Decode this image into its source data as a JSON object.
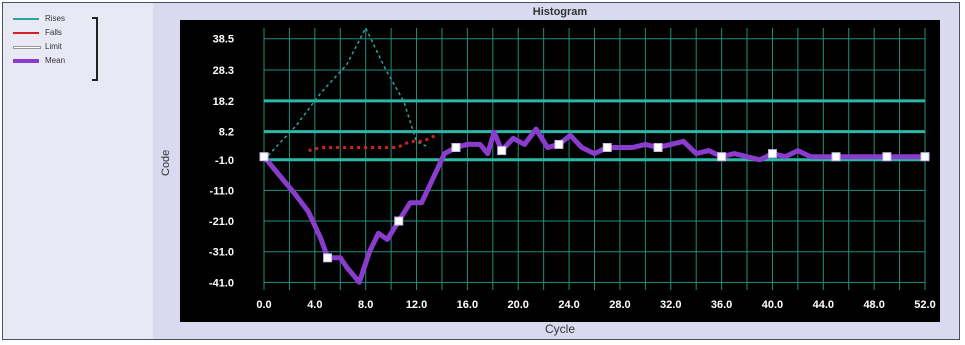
{
  "chart_data": {
    "type": "line",
    "title": "Histogram",
    "xlabel": "Cycle",
    "ylabel": "Code",
    "xlim": [
      0,
      52
    ],
    "x_ticks": [
      0,
      4,
      8,
      12,
      16,
      20,
      24,
      28,
      32,
      36,
      40,
      44,
      48,
      52
    ],
    "x_tick_labels": [
      "0.0",
      "4.0",
      "8.0",
      "12.0",
      "16.0",
      "20.0",
      "24.0",
      "28.0",
      "32.0",
      "36.0",
      "40.0",
      "44.0",
      "48.0",
      "52.0"
    ],
    "y_ticks": [
      38.5,
      28.3,
      18.2,
      8.2,
      -1.0,
      -11.0,
      -21.0,
      -31.0,
      -41.0
    ],
    "y_tick_labels": [
      "38.5",
      "28.3",
      "18.2",
      "8.2",
      "-1.0",
      "-11.0",
      "-21.0",
      "-31.0",
      "-41.0"
    ],
    "ylim": [
      -43.5,
      42
    ],
    "grid": true,
    "legend_position": "top-left",
    "background_color": "#000000",
    "grid_color": "#1e8f80",
    "emphasis_lines_y": [
      18.2,
      8.2,
      -1.0
    ],
    "series": [
      {
        "name": "Rises",
        "color": "#27a896",
        "style": "dashed",
        "x": [
          0.0,
          2.5,
          4.5,
          6.5,
          8.0,
          9.5,
          11.0,
          12.0,
          13.0
        ],
        "y": [
          -1.0,
          10.0,
          21.0,
          30.0,
          42.0,
          29.0,
          18.0,
          5.0,
          3.0
        ]
      },
      {
        "name": "Falls",
        "color": "#d42020",
        "style": "dotted",
        "x": [
          3.5,
          4.5,
          5.5,
          6.5,
          7.0,
          8.0,
          9.0,
          10.5,
          11.0,
          11.5,
          12.5,
          13.5
        ],
        "y": [
          2.0,
          3.0,
          3.0,
          3.0,
          3.0,
          3.0,
          3.0,
          3.0,
          4.0,
          5.0,
          5.0,
          7.0
        ]
      },
      {
        "name": "Limit",
        "color": "#ffffff",
        "style": "solid",
        "x": [],
        "y": []
      },
      {
        "name": "Mean",
        "color": "#8a3ccc",
        "style": "solid",
        "x": [
          0.0,
          2.5,
          3.5,
          4.5,
          5.0,
          5.5,
          6.0,
          6.5,
          7.5,
          8.3,
          9.0,
          9.7,
          10.6,
          11.5,
          12.4,
          13.3,
          14.2,
          15.1,
          16.0,
          17.0,
          17.6,
          18.1,
          18.7,
          19.6,
          20.5,
          21.4,
          22.3,
          23.2,
          24.1,
          25.0,
          26.0,
          27.0,
          28.0,
          29.0,
          30.0,
          31.0,
          32.0,
          33.0,
          34.0,
          35.0,
          36.0,
          37.0,
          38.0,
          39.0,
          40.0,
          41.0,
          42.0,
          43.0,
          44.0,
          45.0,
          46.0,
          47.0,
          48.0,
          49.0,
          50.0,
          51.0,
          52.0
        ],
        "y": [
          0.0,
          -12.5,
          -18.0,
          -27.0,
          -33.0,
          -33.0,
          -33.0,
          -36.0,
          -41.0,
          -31.0,
          -25.0,
          -27.0,
          -21.0,
          -15.0,
          -15.0,
          -7.0,
          1.0,
          3.0,
          4.0,
          4.0,
          1.0,
          8.0,
          2.0,
          6.0,
          4.0,
          9.0,
          3.0,
          4.0,
          7.0,
          3.0,
          1.0,
          3.0,
          3.0,
          3.0,
          4.0,
          3.0,
          4.0,
          5.0,
          1.0,
          2.0,
          0.0,
          1.0,
          0.0,
          -1.0,
          1.0,
          0.0,
          2.0,
          0.0,
          0.0,
          0.0,
          0.0,
          0.0,
          0.0,
          0.0,
          0.0,
          0.0,
          0.0
        ]
      }
    ]
  }
}
